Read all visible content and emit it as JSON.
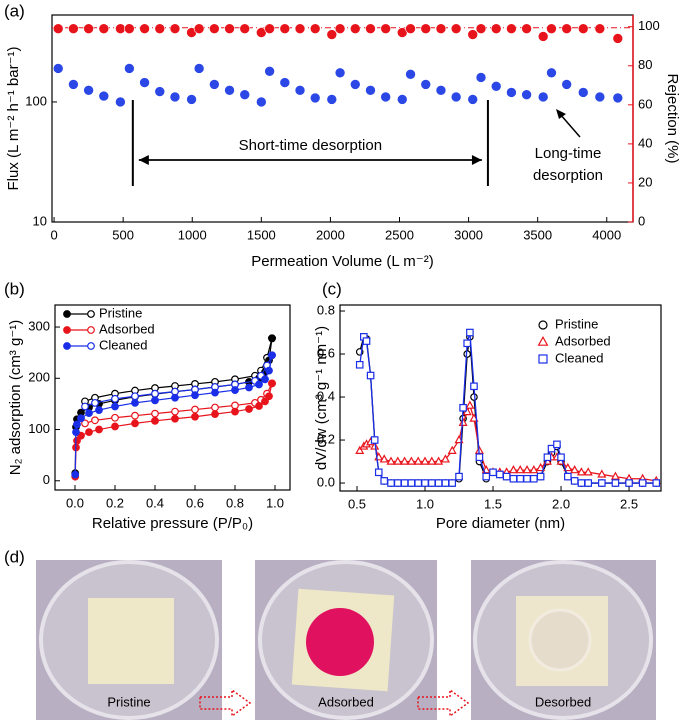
{
  "panel_labels": [
    "(a)",
    "(b)",
    "(c)",
    "(d)"
  ],
  "chart_data": [
    {
      "type": "scatter",
      "xlabel": "Permeation Volume (L m⁻²)",
      "ylabel": "Flux (L m⁻² h⁻¹ bar⁻¹)",
      "y2label": "Rejection (%)",
      "x": [
        30,
        140,
        250,
        360,
        480,
        545,
        655,
        765,
        875,
        995,
        1050,
        1160,
        1270,
        1380,
        1500,
        1560,
        1670,
        1780,
        1890,
        2010,
        2070,
        2180,
        2290,
        2400,
        2520,
        2580,
        2690,
        2800,
        2910,
        3030,
        3090,
        3200,
        3310,
        3420,
        3540,
        3600,
        3710,
        3830,
        3950,
        4080
      ],
      "series": [
        {
          "color": "#2b47e6",
          "values": [
            190,
            140,
            125,
            112,
            100,
            190,
            145,
            122,
            110,
            105,
            190,
            140,
            125,
            115,
            100,
            180,
            145,
            125,
            108,
            105,
            175,
            140,
            125,
            110,
            105,
            170,
            140,
            125,
            110,
            105,
            160,
            135,
            120,
            115,
            110,
            175,
            140,
            120,
            110,
            108
          ]
        },
        {
          "color": "#e8141c",
          "axis": "y2",
          "values": [
            99,
            99,
            99,
            99,
            99,
            99,
            99,
            99,
            99,
            97,
            99,
            99,
            99,
            99,
            97,
            99,
            99,
            99,
            99,
            96,
            99,
            99,
            99,
            99,
            97,
            99,
            99,
            99,
            99,
            96,
            99,
            99,
            99,
            99,
            95,
            99,
            99,
            99,
            99,
            94
          ]
        }
      ],
      "xlim": [
        -15,
        4190
      ],
      "xticks": [
        0,
        500,
        1000,
        1500,
        2000,
        2500,
        3000,
        3500,
        4000
      ],
      "ylim": [
        10,
        530
      ],
      "yticks": [
        10,
        100
      ],
      "yscale": "log",
      "y2lim": [
        0,
        106
      ],
      "y2ticks": [
        0,
        20,
        40,
        60,
        80,
        100
      ],
      "reference_line": {
        "axis": "y2",
        "value": 99.5,
        "color": "#e8141c"
      },
      "markers_x": [
        570,
        3140
      ],
      "annotations": [
        {
          "lines": [
            "Short-time desorption"
          ]
        },
        {
          "lines": [
            "Long-time",
            "desorption"
          ]
        }
      ]
    },
    {
      "type": "isotherm",
      "xlabel": "Relative pressure (P/P₀)",
      "ylabel": "N₂ adsorption (cm³ g⁻¹)",
      "xlim": [
        -0.1,
        1.075
      ],
      "xticks": [
        {
          "value": 0,
          "label": "0.0"
        },
        0.2,
        0.4,
        0.6,
        0.8,
        {
          "value": 1,
          "label": "1.0"
        }
      ],
      "ylim": [
        -18,
        343
      ],
      "yticks": [
        0,
        100,
        200,
        300
      ],
      "legend": "upper left",
      "series": [
        {
          "name": "Pristine",
          "color": "#000000",
          "adsorption": {
            "x": [
              0.001,
              0.005,
              0.01,
              0.03,
              0.07,
              0.12,
              0.2,
              0.3,
              0.4,
              0.5,
              0.6,
              0.7,
              0.8,
              0.87,
              0.92,
              0.95,
              0.97,
              0.985
            ],
            "values": [
              15,
              105,
              120,
              133,
              143,
              150,
              157,
              164,
              169,
              174,
              178,
              183,
              188,
              193,
              200,
              212,
              235,
              278
            ]
          },
          "desorption": {
            "x": [
              0.985,
              0.96,
              0.93,
              0.9,
              0.8,
              0.7,
              0.6,
              0.5,
              0.4,
              0.3,
              0.2,
              0.1,
              0.05
            ],
            "values": [
              278,
              240,
              215,
              205,
              198,
              193,
              189,
              185,
              181,
              176,
              170,
              162,
              155
            ]
          }
        },
        {
          "name": "Adsorbed",
          "color": "#e8141c",
          "adsorption": {
            "x": [
              0.001,
              0.005,
              0.01,
              0.03,
              0.07,
              0.12,
              0.2,
              0.3,
              0.4,
              0.5,
              0.6,
              0.7,
              0.8,
              0.87,
              0.92,
              0.95,
              0.97,
              0.985
            ],
            "values": [
              8,
              65,
              78,
              88,
              95,
              100,
              106,
              112,
              117,
              121,
              125,
              130,
              135,
              140,
              146,
              155,
              165,
              190
            ]
          },
          "desorption": {
            "x": [
              0.985,
              0.96,
              0.93,
              0.9,
              0.8,
              0.7,
              0.6,
              0.5,
              0.4,
              0.3,
              0.2,
              0.1,
              0.05
            ],
            "values": [
              190,
              170,
              158,
              152,
              147,
              143,
              139,
              135,
              131,
              127,
              123,
              118,
              112
            ]
          }
        },
        {
          "name": "Cleaned",
          "color": "#1a2ee8",
          "adsorption": {
            "x": [
              0.001,
              0.005,
              0.01,
              0.03,
              0.07,
              0.12,
              0.2,
              0.3,
              0.4,
              0.5,
              0.6,
              0.7,
              0.8,
              0.87,
              0.92,
              0.95,
              0.97,
              0.985
            ],
            "values": [
              12,
              95,
              110,
              122,
              132,
              138,
              145,
              152,
              157,
              162,
              167,
              172,
              177,
              182,
              188,
              198,
              215,
              245
            ]
          },
          "desorption": {
            "x": [
              0.985,
              0.96,
              0.93,
              0.9,
              0.8,
              0.7,
              0.6,
              0.5,
              0.4,
              0.3,
              0.2,
              0.1,
              0.05
            ],
            "values": [
              245,
              225,
              205,
              195,
              188,
              183,
              178,
              174,
              170,
              165,
              160,
              152,
              145
            ]
          }
        }
      ]
    },
    {
      "type": "line",
      "xlabel": "Pore diameter (nm)",
      "ylabel": "dV/dw (cm³ g⁻¹ nm⁻¹)",
      "xlim": [
        0.375,
        2.735
      ],
      "xticks": [
        0.5,
        {
          "value": 1,
          "label": "1.0"
        },
        1.5,
        {
          "value": 2,
          "label": "2.0"
        },
        2.5
      ],
      "ylim": [
        -0.037,
        0.828
      ],
      "yticks": [
        {
          "value": 0,
          "label": "0.0"
        },
        0.2,
        0.4,
        0.6,
        0.8
      ],
      "legend": "upper right",
      "x": [
        0.52,
        0.55,
        0.57,
        0.6,
        0.63,
        0.66,
        0.7,
        0.75,
        0.8,
        0.85,
        0.9,
        0.95,
        1.0,
        1.05,
        1.1,
        1.15,
        1.2,
        1.25,
        1.28,
        1.31,
        1.33,
        1.36,
        1.4,
        1.45,
        1.5,
        1.55,
        1.6,
        1.65,
        1.7,
        1.75,
        1.8,
        1.85,
        1.9,
        1.93,
        1.97,
        2.0,
        2.05,
        2.1,
        2.15,
        2.2,
        2.3,
        2.4,
        2.5,
        2.6,
        2.7
      ],
      "series": [
        {
          "name": "Pristine",
          "color": "#000000",
          "marker": "circle",
          "values": [
            0.61,
            0.68,
            0.67,
            0.5,
            0.2,
            0.05,
            0.01,
            0,
            0,
            0,
            0,
            0,
            0,
            0,
            0,
            0,
            0,
            0.02,
            0.3,
            0.6,
            0.68,
            0.4,
            0.1,
            0.02,
            0.05,
            0.04,
            0.03,
            0.02,
            0.02,
            0.02,
            0.02,
            0.03,
            0.1,
            0.14,
            0.17,
            0.1,
            0.03,
            0.01,
            0,
            0,
            0,
            0,
            0,
            0,
            0
          ]
        },
        {
          "name": "Adsorbed",
          "color": "#e8141c",
          "marker": "triangle",
          "values": [
            0.15,
            0.17,
            0.18,
            0.19,
            0.17,
            0.12,
            0.11,
            0.1,
            0.1,
            0.1,
            0.1,
            0.1,
            0.1,
            0.1,
            0.1,
            0.11,
            0.15,
            0.2,
            0.28,
            0.33,
            0.36,
            0.3,
            0.15,
            0.06,
            0.05,
            0.05,
            0.05,
            0.06,
            0.06,
            0.06,
            0.06,
            0.07,
            0.1,
            0.12,
            0.12,
            0.1,
            0.07,
            0.06,
            0.05,
            0.05,
            0.04,
            0.03,
            0.02,
            0.02,
            0.01
          ]
        },
        {
          "name": "Cleaned",
          "color": "#1a2ee8",
          "marker": "square",
          "values": [
            0.55,
            0.68,
            0.66,
            0.5,
            0.2,
            0.05,
            0.01,
            0,
            0,
            0,
            0,
            0,
            0,
            0,
            0,
            0,
            0,
            0.03,
            0.35,
            0.65,
            0.7,
            0.45,
            0.12,
            0.03,
            0.05,
            0.04,
            0.03,
            0.02,
            0.02,
            0.02,
            0.02,
            0.03,
            0.12,
            0.16,
            0.18,
            0.12,
            0.03,
            0.01,
            0,
            0,
            0,
            0,
            0,
            0,
            0
          ]
        }
      ]
    }
  ],
  "photos": {
    "captions": [
      {
        "text": "Pristine",
        "color": "#f3d978"
      },
      {
        "text": "Adsorbed",
        "color": "#e8141c"
      },
      {
        "text": "Desorbed",
        "color": "#f3d978"
      }
    ]
  }
}
